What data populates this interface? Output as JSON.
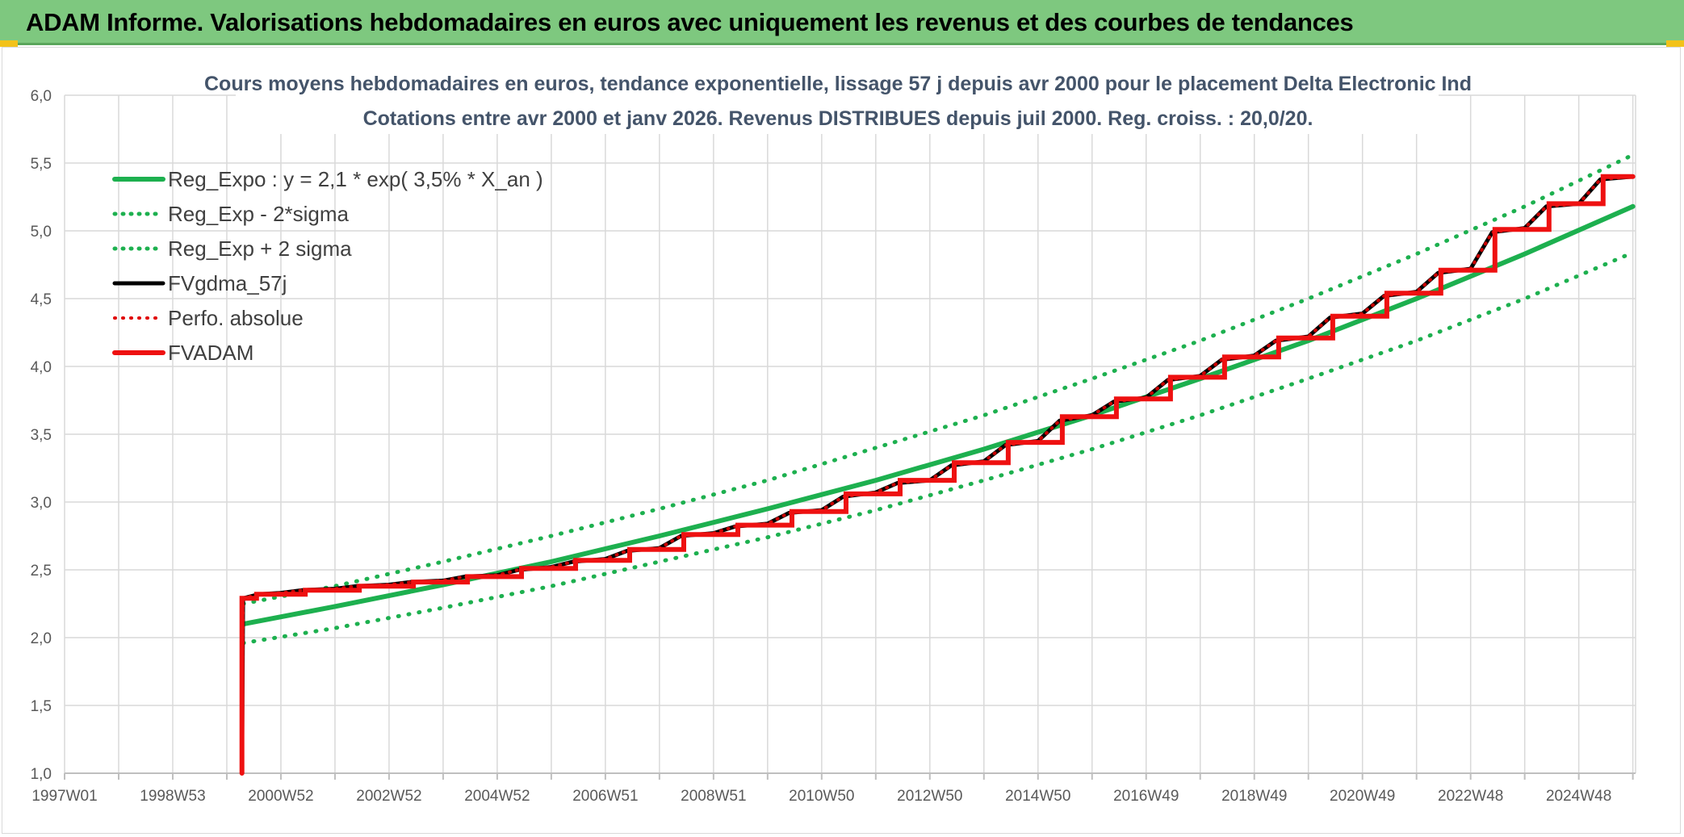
{
  "header": {
    "title": "ADAM Informe. Valorisations hebdomadaires en euros avec uniquement les revenus et des courbes de tendances",
    "background": "#7ec87f",
    "accent": "#f2c21a"
  },
  "chart_data": {
    "type": "line",
    "title": "Cours moyens hebdomadaires en euros, tendance exponentielle, lissage 57 j depuis avr 2000 pour le placement Delta Electronic Ind",
    "subtitle": "Cotations entre avr 2000 et janv 2026. Revenus DISTRIBUES depuis juil 2000. Reg. croiss. : 20,0/20.",
    "xlabel": "",
    "ylabel": "",
    "xlim": [
      1997.0,
      2026.05
    ],
    "ylim": [
      1.0,
      6.0
    ],
    "x_ticks": [
      {
        "x": 1997.0,
        "label": "1997W01"
      },
      {
        "x": 1999.0,
        "label": "1998W53"
      },
      {
        "x": 2001.0,
        "label": "2000W52"
      },
      {
        "x": 2003.0,
        "label": "2002W52"
      },
      {
        "x": 2005.0,
        "label": "2004W52"
      },
      {
        "x": 2007.0,
        "label": "2006W51"
      },
      {
        "x": 2009.0,
        "label": "2008W51"
      },
      {
        "x": 2011.0,
        "label": "2010W50"
      },
      {
        "x": 2013.0,
        "label": "2012W50"
      },
      {
        "x": 2015.0,
        "label": "2014W50"
      },
      {
        "x": 2017.0,
        "label": "2016W49"
      },
      {
        "x": 2019.0,
        "label": "2018W49"
      },
      {
        "x": 2021.0,
        "label": "2020W49"
      },
      {
        "x": 2023.0,
        "label": "2022W48"
      },
      {
        "x": 2025.0,
        "label": "2024W48"
      }
    ],
    "y_ticks": [
      "1,0",
      "1,5",
      "2,0",
      "2,5",
      "3,0",
      "3,5",
      "4,0",
      "4,5",
      "5,0",
      "5,5",
      "6,0"
    ],
    "grid": true,
    "legend_position": "top-left",
    "series": [
      {
        "name": "Reg_Expo : y = 2,1 * exp( 3,5% *  X_an )",
        "color": "#1db04f",
        "style": "solid",
        "width": 6,
        "x": [
          2000.3,
          2002.0,
          2004.0,
          2006.0,
          2008.0,
          2010.0,
          2012.0,
          2014.0,
          2016.0,
          2018.0,
          2020.0,
          2022.0,
          2024.0,
          2026.0
        ],
        "values": [
          2.1,
          2.23,
          2.39,
          2.56,
          2.75,
          2.95,
          3.16,
          3.39,
          3.64,
          3.91,
          4.19,
          4.5,
          4.83,
          5.18
        ]
      },
      {
        "name": "Reg_Exp - 2*sigma",
        "color": "#1db04f",
        "style": "dotted",
        "width": 5,
        "x": [
          2000.3,
          2002.0,
          2004.0,
          2006.0,
          2008.0,
          2010.0,
          2012.0,
          2014.0,
          2016.0,
          2018.0,
          2020.0,
          2022.0,
          2024.0,
          2026.0
        ],
        "values": [
          1.96,
          2.07,
          2.22,
          2.38,
          2.56,
          2.74,
          2.94,
          3.16,
          3.39,
          3.64,
          3.91,
          4.19,
          4.5,
          4.84
        ]
      },
      {
        "name": "Reg_Exp + 2 sigma",
        "color": "#1db04f",
        "style": "dotted",
        "width": 5,
        "x": [
          2000.3,
          2002.0,
          2004.0,
          2006.0,
          2008.0,
          2010.0,
          2012.0,
          2014.0,
          2016.0,
          2018.0,
          2020.0,
          2022.0,
          2024.0,
          2026.0
        ],
        "values": [
          2.25,
          2.38,
          2.56,
          2.75,
          2.95,
          3.16,
          3.4,
          3.64,
          3.91,
          4.19,
          4.5,
          4.83,
          5.18,
          5.56
        ]
      },
      {
        "name": "FVgdma_57j",
        "color": "#000000",
        "style": "solid",
        "width": 5,
        "x": [
          2000.28,
          2000.3,
          2000.6,
          2001.0,
          2001.4,
          2002.0,
          2002.4,
          2003.0,
          2003.4,
          2004.0,
          2004.4,
          2005.0,
          2005.4,
          2006.0,
          2006.4,
          2007.0,
          2007.4,
          2008.0,
          2008.4,
          2009.0,
          2009.4,
          2010.0,
          2010.4,
          2011.0,
          2011.4,
          2012.0,
          2012.4,
          2013.0,
          2013.4,
          2014.0,
          2014.4,
          2015.0,
          2015.4,
          2016.0,
          2016.4,
          2017.0,
          2017.4,
          2018.0,
          2018.4,
          2019.0,
          2019.4,
          2020.0,
          2020.4,
          2021.0,
          2021.4,
          2022.0,
          2022.4,
          2023.0,
          2023.4,
          2024.0,
          2024.4,
          2025.0,
          2025.4,
          2026.0
        ],
        "values": [
          1.0,
          2.29,
          2.32,
          2.33,
          2.35,
          2.36,
          2.38,
          2.39,
          2.41,
          2.42,
          2.45,
          2.46,
          2.5,
          2.52,
          2.56,
          2.58,
          2.64,
          2.66,
          2.75,
          2.77,
          2.82,
          2.84,
          2.92,
          2.94,
          3.04,
          3.07,
          3.14,
          3.16,
          3.27,
          3.3,
          3.42,
          3.45,
          3.6,
          3.64,
          3.74,
          3.77,
          3.9,
          3.93,
          4.05,
          4.08,
          4.19,
          4.22,
          4.36,
          4.39,
          4.52,
          4.55,
          4.69,
          4.72,
          4.99,
          5.02,
          5.18,
          5.2,
          5.38,
          5.4
        ]
      },
      {
        "name": "Perfo. absolue",
        "color": "#e00000",
        "style": "dotted",
        "width": 4,
        "x": [
          2000.28,
          2000.3,
          2000.6,
          2001.0,
          2001.4,
          2002.0,
          2002.4,
          2003.0,
          2003.4,
          2004.0,
          2004.4,
          2005.0,
          2005.4,
          2006.0,
          2006.4,
          2007.0,
          2007.4,
          2008.0,
          2008.4,
          2009.0,
          2009.4,
          2010.0,
          2010.4,
          2011.0,
          2011.4,
          2012.0,
          2012.4,
          2013.0,
          2013.4,
          2014.0,
          2014.4,
          2015.0,
          2015.4,
          2016.0,
          2016.4,
          2017.0,
          2017.4,
          2018.0,
          2018.4,
          2019.0,
          2019.4,
          2020.0,
          2020.4,
          2021.0,
          2021.4,
          2022.0,
          2022.4,
          2023.0,
          2023.4,
          2024.0,
          2024.4,
          2025.0,
          2025.4,
          2026.0
        ],
        "values": [
          1.0,
          2.29,
          2.32,
          2.33,
          2.35,
          2.36,
          2.38,
          2.39,
          2.41,
          2.42,
          2.45,
          2.46,
          2.5,
          2.52,
          2.56,
          2.58,
          2.64,
          2.66,
          2.75,
          2.77,
          2.82,
          2.84,
          2.92,
          2.94,
          3.04,
          3.07,
          3.14,
          3.16,
          3.27,
          3.3,
          3.42,
          3.45,
          3.6,
          3.64,
          3.74,
          3.77,
          3.9,
          3.93,
          4.05,
          4.08,
          4.19,
          4.22,
          4.36,
          4.39,
          4.52,
          4.55,
          4.69,
          4.72,
          4.99,
          5.02,
          5.18,
          5.2,
          5.38,
          5.4
        ]
      },
      {
        "name": "FVADAM",
        "color": "#ee1111",
        "style": "step",
        "width": 6,
        "x": [
          2000.28,
          2000.28,
          2000.55,
          2000.55,
          2001.45,
          2001.45,
          2002.45,
          2002.45,
          2003.45,
          2003.45,
          2004.45,
          2004.45,
          2005.45,
          2005.45,
          2006.45,
          2006.45,
          2007.45,
          2007.45,
          2008.45,
          2008.45,
          2009.45,
          2009.45,
          2010.45,
          2010.45,
          2011.45,
          2011.45,
          2012.45,
          2012.45,
          2013.45,
          2013.45,
          2014.45,
          2014.45,
          2015.45,
          2015.45,
          2016.45,
          2016.45,
          2017.45,
          2017.45,
          2018.45,
          2018.45,
          2019.45,
          2019.45,
          2020.45,
          2020.45,
          2021.45,
          2021.45,
          2022.45,
          2022.45,
          2023.45,
          2023.45,
          2024.45,
          2024.45,
          2025.45,
          2025.45,
          2026.0
        ],
        "values": [
          1.0,
          2.29,
          2.29,
          2.32,
          2.32,
          2.35,
          2.35,
          2.38,
          2.38,
          2.41,
          2.41,
          2.45,
          2.45,
          2.51,
          2.51,
          2.57,
          2.57,
          2.65,
          2.65,
          2.76,
          2.76,
          2.83,
          2.83,
          2.93,
          2.93,
          3.06,
          3.06,
          3.16,
          3.16,
          3.29,
          3.29,
          3.44,
          3.44,
          3.63,
          3.63,
          3.76,
          3.76,
          3.92,
          3.92,
          4.07,
          4.07,
          4.21,
          4.21,
          4.37,
          4.37,
          4.54,
          4.54,
          4.71,
          4.71,
          5.01,
          5.01,
          5.2,
          5.2,
          5.4,
          5.4
        ]
      }
    ]
  }
}
